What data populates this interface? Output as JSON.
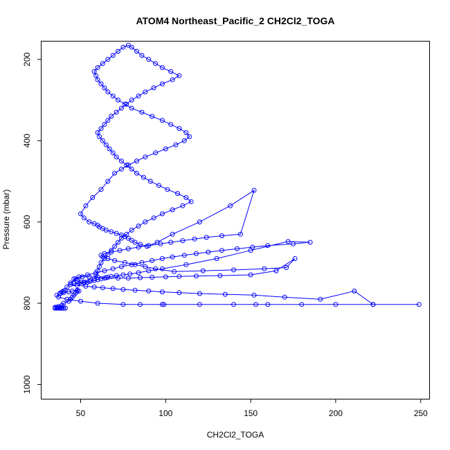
{
  "chart_data": {
    "type": "scatter",
    "title": "ATOM4 Northeast_Pacific_2 CH2Cl2_TOGA",
    "xlabel": "CH2Cl2_TOGA",
    "ylabel": "Pressure (mbar)",
    "xlim": [
      27,
      255
    ],
    "ylim": [
      1035,
      156
    ],
    "y_inverted": true,
    "x_ticks": [
      50,
      100,
      150,
      200,
      250
    ],
    "y_ticks": [
      200,
      400,
      600,
      800,
      1000
    ],
    "grid": false,
    "legend": "none",
    "marker": "open-circle",
    "connected": true,
    "color": "#0000ff",
    "series": [
      {
        "x": [
          35,
          36,
          37,
          38,
          39,
          40,
          41,
          38,
          36,
          35,
          37,
          39,
          40,
          43,
          44,
          45,
          46,
          47,
          48,
          49,
          48,
          45,
          43,
          40,
          38,
          39,
          41,
          42,
          44,
          47,
          51,
          55,
          60,
          65,
          72,
          78,
          85,
          92,
          100,
          108,
          118,
          132,
          150,
          165,
          176,
          171,
          158,
          140,
          122,
          105,
          94,
          88,
          82,
          76,
          70,
          66,
          63,
          62,
          64,
          68,
          73,
          78,
          84,
          90,
          97,
          103,
          110,
          117,
          124,
          133,
          144,
          152,
          138,
          120,
          104,
          95,
          89,
          85,
          82,
          80,
          78,
          76,
          74,
          71,
          68,
          65,
          63,
          61,
          60,
          58,
          55,
          52,
          50,
          53,
          57,
          62,
          66,
          70,
          74,
          78,
          83,
          88,
          94,
          100,
          106,
          111,
          114,
          112,
          108,
          103,
          98,
          92,
          86,
          80,
          76,
          72,
          69,
          66,
          64,
          62,
          60,
          59,
          58,
          60,
          63,
          66,
          69,
          72,
          75,
          78,
          80,
          83,
          86,
          90,
          94,
          98,
          103,
          108,
          104,
          98,
          93,
          88,
          84,
          80,
          77,
          74,
          71,
          68,
          66,
          64,
          62,
          60,
          61,
          63,
          65,
          67,
          69,
          71,
          74,
          77,
          80,
          83,
          87,
          91,
          96,
          101,
          107,
          112,
          115,
          110,
          104,
          98,
          93,
          88,
          84,
          80,
          77,
          74,
          72,
          70,
          68,
          66,
          64,
          62,
          61,
          60,
          59,
          58,
          56,
          54,
          52,
          50,
          48,
          46,
          49,
          54,
          59,
          64,
          69,
          74,
          80,
          86,
          92,
          98,
          104,
          111,
          118,
          125,
          133,
          142,
          151,
          160,
          175,
          185,
          172,
          150,
          130,
          112,
          98,
          90,
          84,
          79,
          75,
          71,
          68,
          66,
          64,
          62,
          60,
          58,
          55,
          52,
          49,
          46,
          44,
          48,
          53,
          58,
          63,
          69,
          75,
          82,
          90,
          98,
          108,
          120,
          135,
          152,
          170,
          191,
          211,
          222,
          249,
          222,
          200,
          180,
          160,
          153,
          140,
          120,
          99,
          98,
          85,
          75,
          60,
          50,
          42,
          37,
          36,
          38,
          40
        ],
        "y": [
          812,
          812,
          812,
          812,
          812,
          812,
          812,
          810,
          810,
          810,
          808,
          805,
          800,
          795,
          790,
          785,
          780,
          775,
          770,
          770,
          768,
          770,
          772,
          774,
          776,
          772,
          768,
          760,
          750,
          740,
          735,
          735,
          736,
          737,
          738,
          738,
          737,
          736,
          735,
          734,
          733,
          732,
          730,
          720,
          690,
          712,
          715,
          718,
          720,
          722,
          715,
          710,
          705,
          700,
          695,
          690,
          686,
          682,
          678,
          674,
          670,
          666,
          662,
          658,
          654,
          650,
          646,
          642,
          638,
          634,
          630,
          522,
          560,
          600,
          630,
          650,
          660,
          655,
          650,
          645,
          640,
          636,
          632,
          628,
          624,
          620,
          616,
          612,
          608,
          604,
          600,
          590,
          580,
          560,
          540,
          520,
          500,
          480,
          470,
          460,
          450,
          440,
          430,
          420,
          410,
          400,
          390,
          380,
          370,
          360,
          350,
          340,
          330,
          320,
          310,
          300,
          290,
          280,
          270,
          260,
          250,
          240,
          230,
          220,
          210,
          200,
          190,
          180,
          170,
          165,
          170,
          180,
          190,
          200,
          210,
          220,
          230,
          240,
          250,
          260,
          270,
          280,
          290,
          300,
          310,
          320,
          330,
          340,
          350,
          360,
          370,
          380,
          390,
          400,
          410,
          420,
          430,
          440,
          450,
          460,
          470,
          480,
          490,
          500,
          510,
          520,
          530,
          540,
          550,
          560,
          570,
          580,
          590,
          600,
          610,
          620,
          630,
          640,
          650,
          660,
          670,
          680,
          690,
          700,
          710,
          720,
          730,
          740,
          745,
          748,
          750,
          748,
          745,
          740,
          735,
          730,
          725,
          720,
          715,
          710,
          705,
          700,
          695,
          690,
          686,
          682,
          678,
          674,
          670,
          666,
          662,
          658,
          654,
          650,
          648,
          670,
          690,
          705,
          715,
          720,
          725,
          728,
          730,
          732,
          734,
          736,
          738,
          740,
          742,
          744,
          746,
          748,
          750,
          752,
          754,
          756,
          758,
          760,
          762,
          764,
          766,
          768,
          770,
          772,
          774,
          776,
          778,
          780,
          785,
          790,
          770,
          803,
          803,
          803,
          803,
          803,
          803,
          803,
          803,
          803,
          803,
          803,
          803,
          803,
          800,
          795,
          790,
          785,
          780,
          775,
          770
        ]
      }
    ]
  }
}
